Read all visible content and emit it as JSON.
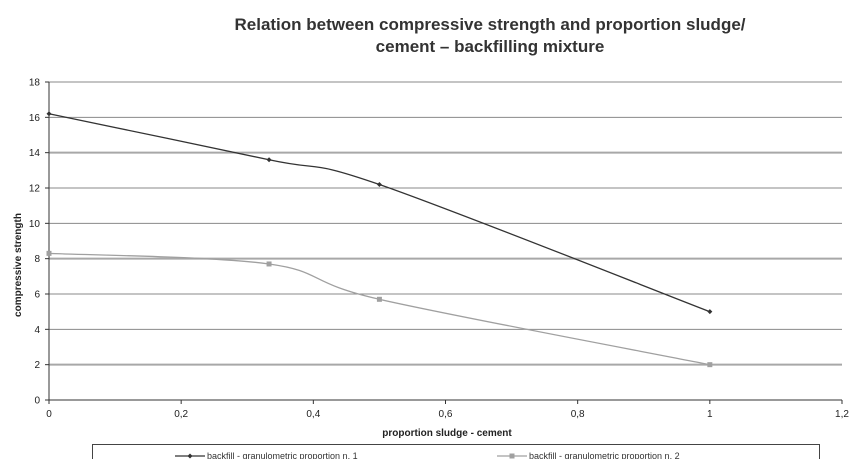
{
  "chart_data": {
    "type": "line",
    "title_line1": "Relation between compressive strength and proportion sludge/",
    "title_line2": "cement – backfilling mixture",
    "xlabel": "proportion sludge - cement",
    "ylabel": "compressive strength",
    "xlim": [
      0,
      1.2
    ],
    "ylim": [
      0,
      18
    ],
    "x_ticks": [
      "0",
      "0,2",
      "0,4",
      "0,6",
      "0,8",
      "1",
      "1,2"
    ],
    "x_tick_values": [
      0,
      0.2,
      0.4,
      0.6,
      0.8,
      1.0,
      1.2
    ],
    "y_ticks": [
      "0",
      "2",
      "4",
      "6",
      "8",
      "10",
      "12",
      "14",
      "16",
      "18"
    ],
    "y_tick_values": [
      0,
      2,
      4,
      6,
      8,
      10,
      12,
      14,
      16,
      18
    ],
    "grid": "horizontal",
    "legend_position": "bottom",
    "series": [
      {
        "name": "backfill - granulometric proportion n. 1",
        "color": "#333333",
        "marker": "diamond",
        "x": [
          0,
          0.333,
          0.5,
          1.0
        ],
        "y": [
          16.2,
          13.6,
          12.2,
          5.0
        ]
      },
      {
        "name": "backfill - granulometric proportion n. 2",
        "color": "#a0a0a0",
        "marker": "square",
        "x": [
          0,
          0.333,
          0.5,
          1.0
        ],
        "y": [
          8.3,
          7.7,
          5.7,
          2.0
        ]
      }
    ]
  }
}
